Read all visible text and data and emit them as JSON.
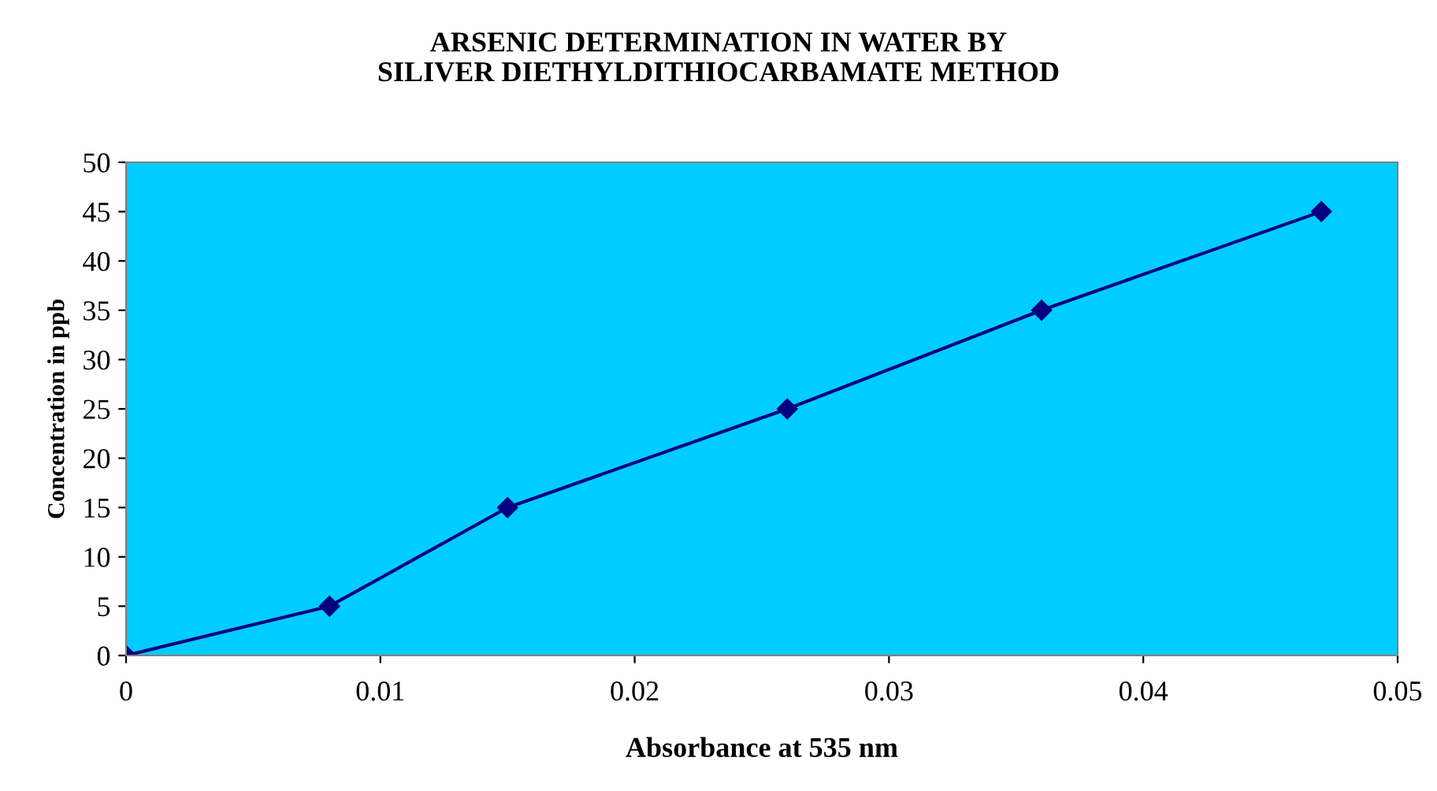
{
  "chart_data": {
    "type": "line",
    "title": "ARSENIC DETERMINATION IN WATER BY\nSILIVER DIETHYLDITHIOCARBAMATE METHOD",
    "xlabel": "Absorbance at 535 nm",
    "ylabel": "Concentration in ppb",
    "x": [
      0,
      0.008,
      0.015,
      0.026,
      0.036,
      0.047
    ],
    "series": [
      {
        "color": "#000080",
        "values": [
          0,
          5,
          15,
          25,
          35,
          45
        ]
      }
    ],
    "xlim": [
      0,
      0.05
    ],
    "xticks": [
      0,
      0.01,
      0.02,
      0.03,
      0.04,
      0.05
    ],
    "ylim": [
      0,
      50
    ],
    "yticks": [
      0,
      5,
      10,
      15,
      20,
      25,
      30,
      35,
      40,
      45,
      50
    ],
    "marker": "diamond",
    "line_style": "solid"
  }
}
